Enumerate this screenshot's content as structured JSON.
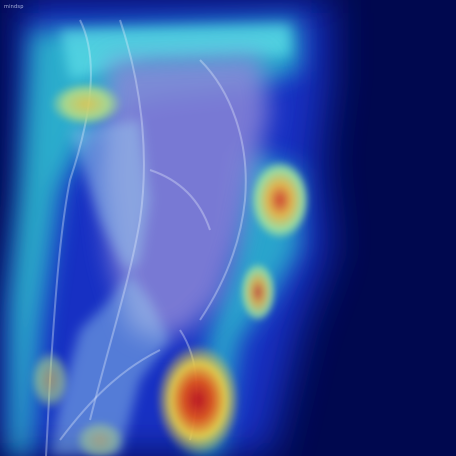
{
  "image": {
    "corner_label": "mindsp",
    "subject": "x-ray-lateral-leg-with-heatmap-overlay",
    "colors": {
      "background": "#00084f",
      "heat_low": "#1a2fd6",
      "heat_mid": "#33d6d0",
      "heat_warm": "#e4d050",
      "heat_hot": "#d61a12"
    }
  }
}
